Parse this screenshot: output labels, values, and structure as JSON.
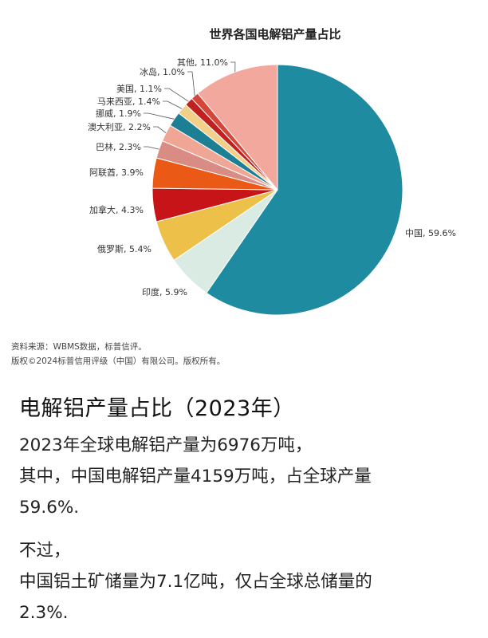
{
  "chart_data": {
    "type": "pie",
    "title": "世界各国电解铝产量占比",
    "slices": [
      {
        "label": "中国, 59.6%",
        "value": 59.6,
        "color": "#1f8ba0"
      },
      {
        "label": "印度, 5.9%",
        "value": 5.9,
        "color": "#d9ebe3"
      },
      {
        "label": "俄罗斯, 5.4%",
        "value": 5.4,
        "color": "#edc04a"
      },
      {
        "label": "加拿大, 4.3%",
        "value": 4.3,
        "color": "#c71418"
      },
      {
        "label": "阿联酋, 3.9%",
        "value": 3.9,
        "color": "#ea5a16"
      },
      {
        "label": "巴林, 2.3%",
        "value": 2.3,
        "color": "#d98c84"
      },
      {
        "label": "澳大利亚, 2.2%",
        "value": 2.2,
        "color": "#f0a695"
      },
      {
        "label": "挪威, 1.9%",
        "value": 1.9,
        "color": "#1c7f94"
      },
      {
        "label": "马来西亚, 1.4%",
        "value": 1.4,
        "color": "#f2d08a"
      },
      {
        "label": "美国, 1.1%",
        "value": 1.1,
        "color": "#c0201e"
      },
      {
        "label": "冰岛, 1.0%",
        "value": 1.0,
        "color": "#d6453a"
      },
      {
        "label": "其他, 11.0%",
        "value": 11.0,
        "color": "#f2a89c"
      }
    ]
  },
  "source": {
    "line1": "资料来源：WBMS数据，标普信评。",
    "line2": "版权©2024标普信用评级（中国）有限公司。版权所有。"
  },
  "article": {
    "heading": "电解铝产量占比（2023年）",
    "para1_line1": "2023年全球电解铝产量为6976万吨，",
    "para1_line2": "其中，中国电解铝产量4159万吨，占全球产量",
    "para1_line3": "59.6%.",
    "para2_line1": "不过，",
    "para2_line2": "中国铝土矿储量为7.1亿吨，仅占全球总储量的",
    "para2_line3": "2.3%."
  }
}
